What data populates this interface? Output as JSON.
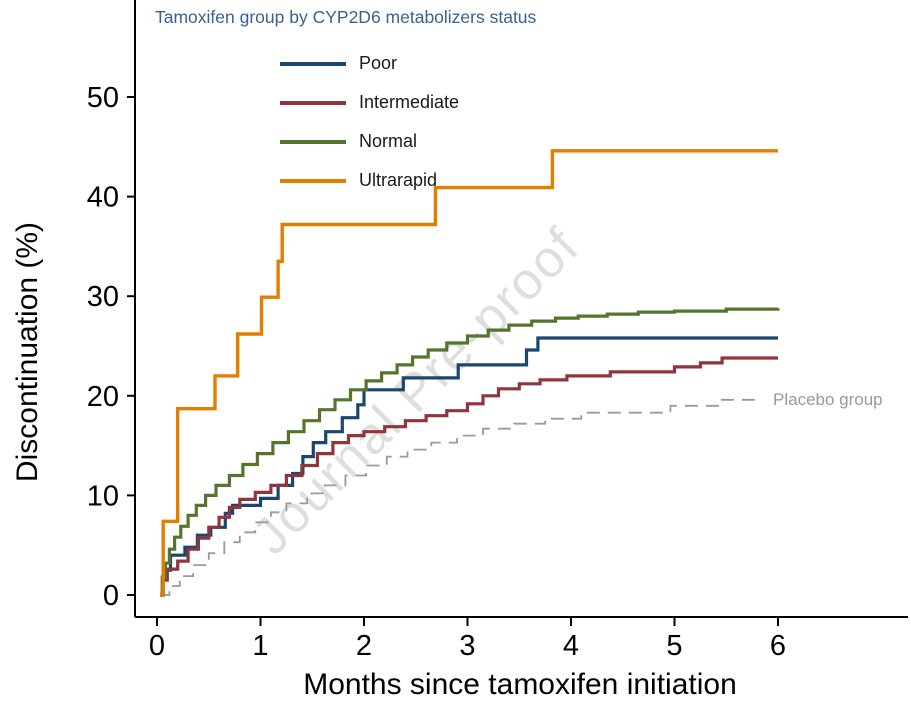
{
  "figure": {
    "watermark": "Journal Pre-proof",
    "background": "#ffffff",
    "axis_color": "#000000"
  },
  "chart_data": {
    "type": "line",
    "subtype": "step-after",
    "legend_title": "Tamoxifen group by CYP2D6 metabolizers status",
    "legend_title_color": "#3a6191",
    "legend_position": "top-left-inside",
    "xlabel": "Months since tamoxifen initiation",
    "ylabel": "Discontinuation (%)",
    "xlim": [
      0,
      6
    ],
    "ylim": [
      0,
      52
    ],
    "xticks": [
      0,
      1,
      2,
      3,
      4,
      5,
      6
    ],
    "yticks": [
      0,
      10,
      20,
      30,
      40,
      50
    ],
    "grid": "off",
    "series": [
      {
        "name": "Placebo group",
        "in_legend": false,
        "color": "#9a9a9a",
        "dash": "13 8",
        "width": 1.8,
        "points": [
          [
            0.03,
            0
          ],
          [
            0.12,
            0.9
          ],
          [
            0.22,
            1.9
          ],
          [
            0.35,
            3.0
          ],
          [
            0.5,
            4.2
          ],
          [
            0.65,
            5.3
          ],
          [
            0.8,
            6.3
          ],
          [
            0.95,
            7.3
          ],
          [
            1.1,
            8.3
          ],
          [
            1.25,
            9.2
          ],
          [
            1.45,
            10.2
          ],
          [
            1.62,
            11.0
          ],
          [
            1.82,
            12.0
          ],
          [
            2.02,
            13.0
          ],
          [
            2.22,
            13.9
          ],
          [
            2.42,
            14.6
          ],
          [
            2.65,
            15.3
          ],
          [
            2.9,
            16.0
          ],
          [
            3.15,
            16.7
          ],
          [
            3.45,
            17.2
          ],
          [
            3.75,
            17.7
          ],
          [
            4.1,
            18.3
          ],
          [
            4.96,
            19.0
          ],
          [
            5.44,
            19.6
          ],
          [
            5.8,
            19.6
          ]
        ]
      },
      {
        "name": "Poor",
        "in_legend": true,
        "color": "#1a476f",
        "dash": "",
        "width": 3.2,
        "points": [
          [
            0.03,
            0
          ],
          [
            0.06,
            2.5
          ],
          [
            0.13,
            4.0
          ],
          [
            0.27,
            4.8
          ],
          [
            0.39,
            6.0
          ],
          [
            0.52,
            6.8
          ],
          [
            0.66,
            8.2
          ],
          [
            0.73,
            9.0
          ],
          [
            1.0,
            9.7
          ],
          [
            1.17,
            11.0
          ],
          [
            1.31,
            12.2
          ],
          [
            1.41,
            13.9
          ],
          [
            1.51,
            15.3
          ],
          [
            1.63,
            16.4
          ],
          [
            1.79,
            17.8
          ],
          [
            1.94,
            19.1
          ],
          [
            2.0,
            20.6
          ],
          [
            2.38,
            21.8
          ],
          [
            2.91,
            23.1
          ],
          [
            3.57,
            24.6
          ],
          [
            3.68,
            25.8
          ],
          [
            6.0,
            25.8
          ]
        ]
      },
      {
        "name": "Intermediate",
        "in_legend": true,
        "color": "#90353b",
        "dash": "",
        "width": 3.2,
        "points": [
          [
            0.03,
            0
          ],
          [
            0.06,
            1.5
          ],
          [
            0.1,
            2.6
          ],
          [
            0.2,
            3.4
          ],
          [
            0.3,
            4.6
          ],
          [
            0.4,
            5.7
          ],
          [
            0.5,
            6.8
          ],
          [
            0.6,
            7.8
          ],
          [
            0.7,
            8.8
          ],
          [
            0.8,
            9.6
          ],
          [
            0.95,
            10.3
          ],
          [
            1.1,
            11.0
          ],
          [
            1.25,
            12.0
          ],
          [
            1.4,
            13.0
          ],
          [
            1.55,
            14.2
          ],
          [
            1.7,
            15.3
          ],
          [
            1.85,
            16.0
          ],
          [
            2.0,
            16.4
          ],
          [
            2.2,
            16.9
          ],
          [
            2.4,
            17.5
          ],
          [
            2.6,
            18.0
          ],
          [
            2.8,
            18.5
          ],
          [
            3.0,
            19.2
          ],
          [
            3.15,
            20.0
          ],
          [
            3.3,
            20.7
          ],
          [
            3.5,
            21.2
          ],
          [
            3.7,
            21.6
          ],
          [
            3.96,
            22.0
          ],
          [
            4.38,
            22.4
          ],
          [
            5.0,
            22.9
          ],
          [
            5.25,
            23.3
          ],
          [
            5.46,
            23.8
          ],
          [
            6.0,
            23.8
          ]
        ]
      },
      {
        "name": "Normal",
        "in_legend": true,
        "color": "#55752f",
        "dash": "",
        "width": 3.2,
        "points": [
          [
            0.03,
            0
          ],
          [
            0.05,
            1.8
          ],
          [
            0.08,
            3.2
          ],
          [
            0.12,
            4.6
          ],
          [
            0.17,
            5.8
          ],
          [
            0.23,
            6.9
          ],
          [
            0.3,
            8.0
          ],
          [
            0.38,
            9.0
          ],
          [
            0.47,
            10.0
          ],
          [
            0.57,
            11.0
          ],
          [
            0.7,
            12.0
          ],
          [
            0.83,
            13.1
          ],
          [
            0.97,
            14.2
          ],
          [
            1.12,
            15.3
          ],
          [
            1.27,
            16.4
          ],
          [
            1.42,
            17.5
          ],
          [
            1.57,
            18.6
          ],
          [
            1.72,
            19.6
          ],
          [
            1.87,
            20.6
          ],
          [
            2.02,
            21.5
          ],
          [
            2.17,
            22.3
          ],
          [
            2.32,
            23.1
          ],
          [
            2.47,
            23.9
          ],
          [
            2.62,
            24.6
          ],
          [
            2.8,
            25.3
          ],
          [
            3.0,
            26.0
          ],
          [
            3.2,
            26.6
          ],
          [
            3.4,
            27.1
          ],
          [
            3.62,
            27.5
          ],
          [
            3.85,
            27.8
          ],
          [
            4.07,
            28.0
          ],
          [
            4.35,
            28.2
          ],
          [
            4.65,
            28.4
          ],
          [
            5.0,
            28.5
          ],
          [
            5.5,
            28.7
          ],
          [
            6.0,
            28.8
          ]
        ]
      },
      {
        "name": "Ultrarapid",
        "in_legend": true,
        "color": "#e37e00",
        "dash": "",
        "width": 3.4,
        "points": [
          [
            0.03,
            0
          ],
          [
            0.06,
            7.4
          ],
          [
            0.2,
            18.7
          ],
          [
            0.56,
            22.0
          ],
          [
            0.78,
            26.2
          ],
          [
            1.01,
            29.9
          ],
          [
            1.17,
            33.5
          ],
          [
            1.21,
            37.2
          ],
          [
            2.69,
            40.9
          ],
          [
            3.82,
            44.6
          ],
          [
            6.0,
            44.6
          ]
        ]
      }
    ],
    "annotations": [
      {
        "text": "Placebo group",
        "x": 5.97,
        "y": 19.6,
        "color": "#9a9a9a"
      }
    ]
  }
}
